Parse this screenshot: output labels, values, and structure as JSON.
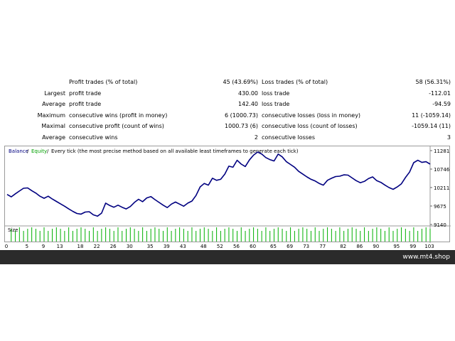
{
  "stats": [
    {
      "prefix": "",
      "label1": "Profit trades (% of total)",
      "value1": "45 (43.69%)",
      "label2": "Loss trades (% of total)",
      "value2": "58 (56.31%)"
    },
    {
      "prefix": "Largest",
      "label1": "profit trade",
      "value1": "430.00",
      "label2": "loss trade",
      "value2": "-112.01"
    },
    {
      "prefix": "Average",
      "label1": "profit trade",
      "value1": "142.40",
      "label2": "loss trade",
      "value2": "-94.59"
    },
    {
      "prefix": "Maximum",
      "label1": "consecutive wins (profit in money)",
      "value1": "6 (1000.73)",
      "label2": "consecutive losses (loss in money)",
      "value2": "11 (-1059.14)"
    },
    {
      "prefix": "Maximal",
      "label1": "consecutive profit (count of wins)",
      "value1": "1000.73 (6)",
      "label2": "consecutive loss (count of losses)",
      "value2": "-1059.14 (11)"
    },
    {
      "prefix": "Average",
      "label1": "consecutive wins",
      "value1": "2",
      "label2": "consecutive losses",
      "value2": "3"
    }
  ],
  "chart_data": {
    "type": "line",
    "legend": {
      "balance": "Balance",
      "sep1": " / ",
      "equity": "Equity",
      "sep2": " / ",
      "note": "Every tick (the most precise method based on all available least timeframes to generate each tick)"
    },
    "size_label": "Size",
    "colors": {
      "balance": "#000080",
      "equity": "#00a000",
      "volume": "#00b000"
    },
    "ylim": [
      9140,
      11281
    ],
    "y_ticks": [
      "11281",
      "10746",
      "10211",
      "9675",
      "9140"
    ],
    "x_ticks": [
      "0",
      "5",
      "9",
      "13",
      "18",
      "22",
      "26",
      "30",
      "35",
      "39",
      "43",
      "48",
      "52",
      "56",
      "60",
      "65",
      "69",
      "73",
      "77",
      "82",
      "86",
      "90",
      "95",
      "99",
      "103"
    ],
    "x_tick_values": [
      0,
      5,
      9,
      13,
      18,
      22,
      26,
      30,
      35,
      39,
      43,
      48,
      52,
      56,
      60,
      65,
      69,
      73,
      77,
      82,
      86,
      90,
      95,
      99,
      103
    ],
    "xlim": [
      0,
      103
    ],
    "series": [
      {
        "values": [
          10010,
          9940,
          10030,
          10110,
          10190,
          10200,
          10120,
          10050,
          9960,
          9900,
          9960,
          9880,
          9810,
          9740,
          9670,
          9590,
          9520,
          9460,
          9440,
          9500,
          9510,
          9420,
          9380,
          9470,
          9760,
          9690,
          9640,
          9700,
          9640,
          9590,
          9660,
          9780,
          9870,
          9800,
          9910,
          9950,
          9860,
          9780,
          9700,
          9630,
          9730,
          9790,
          9730,
          9670,
          9760,
          9820,
          9980,
          10230,
          10330,
          10280,
          10480,
          10420,
          10450,
          10600,
          10830,
          10800,
          11000,
          10890,
          10820,
          11010,
          11150,
          11240,
          11180,
          11080,
          11020,
          10980,
          11180,
          11100,
          10960,
          10880,
          10800,
          10680,
          10600,
          10520,
          10450,
          10400,
          10330,
          10280,
          10420,
          10480,
          10530,
          10540,
          10580,
          10570,
          10490,
          10410,
          10350,
          10390,
          10470,
          10520,
          10410,
          10360,
          10280,
          10210,
          10160,
          10230,
          10320,
          10500,
          10660,
          10930,
          11000,
          10940,
          10960,
          10890
        ]
      }
    ],
    "volume_ticks": 103
  },
  "footer": {
    "url": "www.mt4.shop"
  }
}
